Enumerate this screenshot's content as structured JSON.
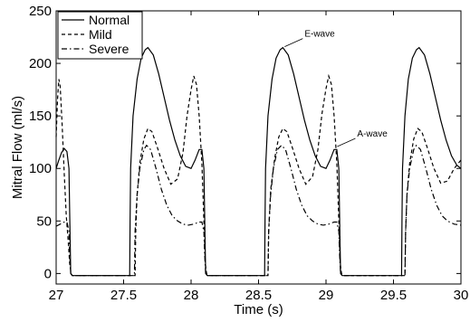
{
  "chart_data": {
    "type": "line",
    "title": "",
    "xlabel": "Time (s)",
    "ylabel": "Mitral Flow (ml/s)",
    "xlim": [
      27,
      30
    ],
    "ylim": [
      -10,
      250
    ],
    "x_ticks": [
      27,
      27.5,
      28,
      28.5,
      29,
      29.5,
      30
    ],
    "x_tick_labels": [
      "27",
      "27.5",
      "28",
      "28.5",
      "29",
      "29.5",
      "30"
    ],
    "y_ticks": [
      0,
      50,
      100,
      150,
      200,
      250
    ],
    "y_tick_labels": [
      "0",
      "50",
      "100",
      "150",
      "200",
      "250"
    ],
    "grid": false,
    "legend_position": "top-left",
    "series": [
      {
        "name": "Normal",
        "style": "solid",
        "color": "#000000",
        "points": [
          [
            27.0,
            100
          ],
          [
            27.02,
            108
          ],
          [
            27.04,
            115
          ],
          [
            27.06,
            119
          ],
          [
            27.08,
            116
          ],
          [
            27.095,
            100
          ],
          [
            27.1,
            60
          ],
          [
            27.108,
            0
          ],
          [
            27.12,
            -2
          ],
          [
            27.3,
            -2
          ],
          [
            27.545,
            -2
          ],
          [
            27.548,
            50
          ],
          [
            27.552,
            100
          ],
          [
            27.57,
            150
          ],
          [
            27.6,
            185
          ],
          [
            27.63,
            205
          ],
          [
            27.66,
            213
          ],
          [
            27.68,
            215
          ],
          [
            27.72,
            208
          ],
          [
            27.76,
            190
          ],
          [
            27.8,
            168
          ],
          [
            27.84,
            146
          ],
          [
            27.88,
            127
          ],
          [
            27.92,
            112
          ],
          [
            27.96,
            102
          ],
          [
            28.0,
            100
          ],
          [
            28.03,
            108
          ],
          [
            28.06,
            118
          ],
          [
            28.08,
            118
          ],
          [
            28.095,
            100
          ],
          [
            28.1,
            60
          ],
          [
            28.108,
            0
          ],
          [
            28.12,
            -2
          ],
          [
            28.3,
            -2
          ],
          [
            28.545,
            -2
          ],
          [
            28.548,
            50
          ],
          [
            28.552,
            100
          ],
          [
            28.57,
            150
          ],
          [
            28.6,
            185
          ],
          [
            28.63,
            205
          ],
          [
            28.66,
            213
          ],
          [
            28.68,
            215
          ],
          [
            28.72,
            208
          ],
          [
            28.76,
            190
          ],
          [
            28.8,
            168
          ],
          [
            28.84,
            146
          ],
          [
            28.88,
            127
          ],
          [
            28.92,
            112
          ],
          [
            28.96,
            102
          ],
          [
            29.0,
            100
          ],
          [
            29.03,
            108
          ],
          [
            29.06,
            118
          ],
          [
            29.08,
            118
          ],
          [
            29.095,
            100
          ],
          [
            29.1,
            60
          ],
          [
            29.108,
            0
          ],
          [
            29.12,
            -2
          ],
          [
            29.3,
            -2
          ],
          [
            29.56,
            -2
          ],
          [
            29.563,
            50
          ],
          [
            29.567,
            100
          ],
          [
            29.585,
            150
          ],
          [
            29.61,
            185
          ],
          [
            29.64,
            205
          ],
          [
            29.67,
            213
          ],
          [
            29.69,
            215
          ],
          [
            29.73,
            208
          ],
          [
            29.77,
            190
          ],
          [
            29.81,
            168
          ],
          [
            29.85,
            146
          ],
          [
            29.89,
            127
          ],
          [
            29.93,
            112
          ],
          [
            29.97,
            103
          ],
          [
            30.0,
            100
          ]
        ]
      },
      {
        "name": "Mild",
        "style": "dashed",
        "color": "#000000",
        "points": [
          [
            27.0,
            130
          ],
          [
            27.01,
            165
          ],
          [
            27.02,
            185
          ],
          [
            27.03,
            178
          ],
          [
            27.045,
            140
          ],
          [
            27.06,
            95
          ],
          [
            27.075,
            55
          ],
          [
            27.09,
            30
          ],
          [
            27.1,
            10
          ],
          [
            27.11,
            0
          ],
          [
            27.12,
            -2
          ],
          [
            27.3,
            -2
          ],
          [
            27.585,
            -2
          ],
          [
            27.59,
            40
          ],
          [
            27.6,
            75
          ],
          [
            27.62,
            105
          ],
          [
            27.65,
            128
          ],
          [
            27.68,
            138
          ],
          [
            27.71,
            135
          ],
          [
            27.75,
            120
          ],
          [
            27.8,
            100
          ],
          [
            27.85,
            85
          ],
          [
            27.9,
            90
          ],
          [
            27.94,
            115
          ],
          [
            27.97,
            150
          ],
          [
            28.0,
            175
          ],
          [
            28.02,
            188
          ],
          [
            28.04,
            180
          ],
          [
            28.06,
            150
          ],
          [
            28.08,
            105
          ],
          [
            28.095,
            50
          ],
          [
            28.105,
            10
          ],
          [
            28.115,
            0
          ],
          [
            28.125,
            -2
          ],
          [
            28.3,
            -2
          ],
          [
            28.57,
            -2
          ],
          [
            28.575,
            40
          ],
          [
            28.59,
            80
          ],
          [
            28.62,
            110
          ],
          [
            28.65,
            130
          ],
          [
            28.68,
            138
          ],
          [
            28.71,
            135
          ],
          [
            28.75,
            120
          ],
          [
            28.8,
            100
          ],
          [
            28.85,
            85
          ],
          [
            28.9,
            92
          ],
          [
            28.94,
            118
          ],
          [
            28.97,
            152
          ],
          [
            29.0,
            176
          ],
          [
            29.02,
            188
          ],
          [
            29.04,
            180
          ],
          [
            29.06,
            150
          ],
          [
            29.08,
            105
          ],
          [
            29.095,
            50
          ],
          [
            29.105,
            10
          ],
          [
            29.115,
            0
          ],
          [
            29.125,
            -2
          ],
          [
            29.3,
            -2
          ],
          [
            29.585,
            -2
          ],
          [
            29.59,
            40
          ],
          [
            29.6,
            75
          ],
          [
            29.62,
            105
          ],
          [
            29.65,
            128
          ],
          [
            29.68,
            138
          ],
          [
            29.71,
            135
          ],
          [
            29.75,
            120
          ],
          [
            29.8,
            100
          ],
          [
            29.85,
            86
          ],
          [
            29.9,
            88
          ],
          [
            29.95,
            100
          ],
          [
            30.0,
            108
          ]
        ]
      },
      {
        "name": "Severe",
        "style": "dashdot",
        "color": "#000000",
        "points": [
          [
            27.0,
            45
          ],
          [
            27.03,
            47
          ],
          [
            27.06,
            49
          ],
          [
            27.08,
            49
          ],
          [
            27.095,
            40
          ],
          [
            27.1,
            20
          ],
          [
            27.108,
            0
          ],
          [
            27.12,
            -2
          ],
          [
            27.3,
            -2
          ],
          [
            27.58,
            -2
          ],
          [
            27.585,
            40
          ],
          [
            27.6,
            75
          ],
          [
            27.62,
            100
          ],
          [
            27.65,
            118
          ],
          [
            27.67,
            122
          ],
          [
            27.7,
            118
          ],
          [
            27.74,
            100
          ],
          [
            27.78,
            80
          ],
          [
            27.82,
            65
          ],
          [
            27.86,
            55
          ],
          [
            27.9,
            50
          ],
          [
            27.94,
            47
          ],
          [
            27.98,
            46
          ],
          [
            28.02,
            47
          ],
          [
            28.06,
            49
          ],
          [
            28.08,
            49
          ],
          [
            28.095,
            40
          ],
          [
            28.1,
            20
          ],
          [
            28.108,
            0
          ],
          [
            28.12,
            -2
          ],
          [
            28.3,
            -2
          ],
          [
            28.57,
            -2
          ],
          [
            28.575,
            40
          ],
          [
            28.59,
            75
          ],
          [
            28.61,
            100
          ],
          [
            28.64,
            118
          ],
          [
            28.67,
            122
          ],
          [
            28.7,
            118
          ],
          [
            28.74,
            100
          ],
          [
            28.78,
            80
          ],
          [
            28.82,
            65
          ],
          [
            28.86,
            55
          ],
          [
            28.9,
            50
          ],
          [
            28.94,
            47
          ],
          [
            28.98,
            46
          ],
          [
            29.02,
            47
          ],
          [
            29.06,
            49
          ],
          [
            29.08,
            49
          ],
          [
            29.095,
            40
          ],
          [
            29.1,
            20
          ],
          [
            29.108,
            0
          ],
          [
            29.12,
            -2
          ],
          [
            29.3,
            -2
          ],
          [
            29.585,
            -2
          ],
          [
            29.59,
            40
          ],
          [
            29.6,
            75
          ],
          [
            29.62,
            100
          ],
          [
            29.65,
            118
          ],
          [
            29.67,
            122
          ],
          [
            29.7,
            118
          ],
          [
            29.74,
            100
          ],
          [
            29.78,
            80
          ],
          [
            29.82,
            65
          ],
          [
            29.86,
            55
          ],
          [
            29.9,
            50
          ],
          [
            29.95,
            47
          ],
          [
            30.0,
            46
          ]
        ]
      }
    ],
    "annotations": [
      {
        "text": "E-wave",
        "target": [
          28.68,
          215
        ],
        "anchor": "upper-right"
      },
      {
        "text": "A-wave",
        "target": [
          29.07,
          120
        ],
        "anchor": "upper-right"
      }
    ]
  }
}
